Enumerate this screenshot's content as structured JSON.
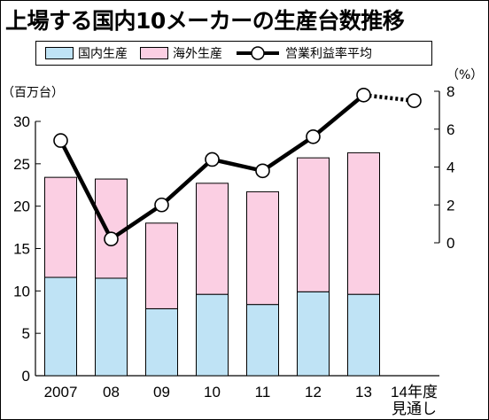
{
  "title": "上場する国内10メーカーの生産台数推移",
  "legend": {
    "domestic": "国内生産",
    "overseas": "海外生産",
    "margin": "営業利益率平均"
  },
  "colors": {
    "domestic": "#bfe3f5",
    "overseas": "#fbcfe3",
    "line": "#000000"
  },
  "chart_data": {
    "type": "bar",
    "categories": [
      "2007",
      "08",
      "09",
      "10",
      "11",
      "12",
      "13",
      "14年度\n見通し"
    ],
    "series": [
      {
        "name": "国内生産",
        "type": "bar",
        "stack": "production",
        "values": [
          11.6,
          11.5,
          7.9,
          9.6,
          8.4,
          9.9,
          9.6,
          null
        ]
      },
      {
        "name": "海外生産",
        "type": "bar",
        "stack": "production",
        "values": [
          11.8,
          11.7,
          10.1,
          13.1,
          13.3,
          15.8,
          16.7,
          null
        ]
      },
      {
        "name": "営業利益率平均",
        "type": "line",
        "axis": "right",
        "values": [
          5.4,
          0.2,
          2.0,
          4.4,
          3.8,
          5.6,
          7.8,
          7.5
        ],
        "dotted_last_segment": true
      }
    ],
    "y_left": {
      "label": "（百万台）",
      "range": [
        0,
        30
      ],
      "ticks": [
        0,
        5,
        10,
        15,
        20,
        25,
        30
      ]
    },
    "y_right": {
      "label": "（%）",
      "range": [
        0,
        8
      ],
      "ticks": [
        0,
        2,
        4,
        6,
        8
      ]
    },
    "grid": false,
    "legend_position": "top"
  }
}
